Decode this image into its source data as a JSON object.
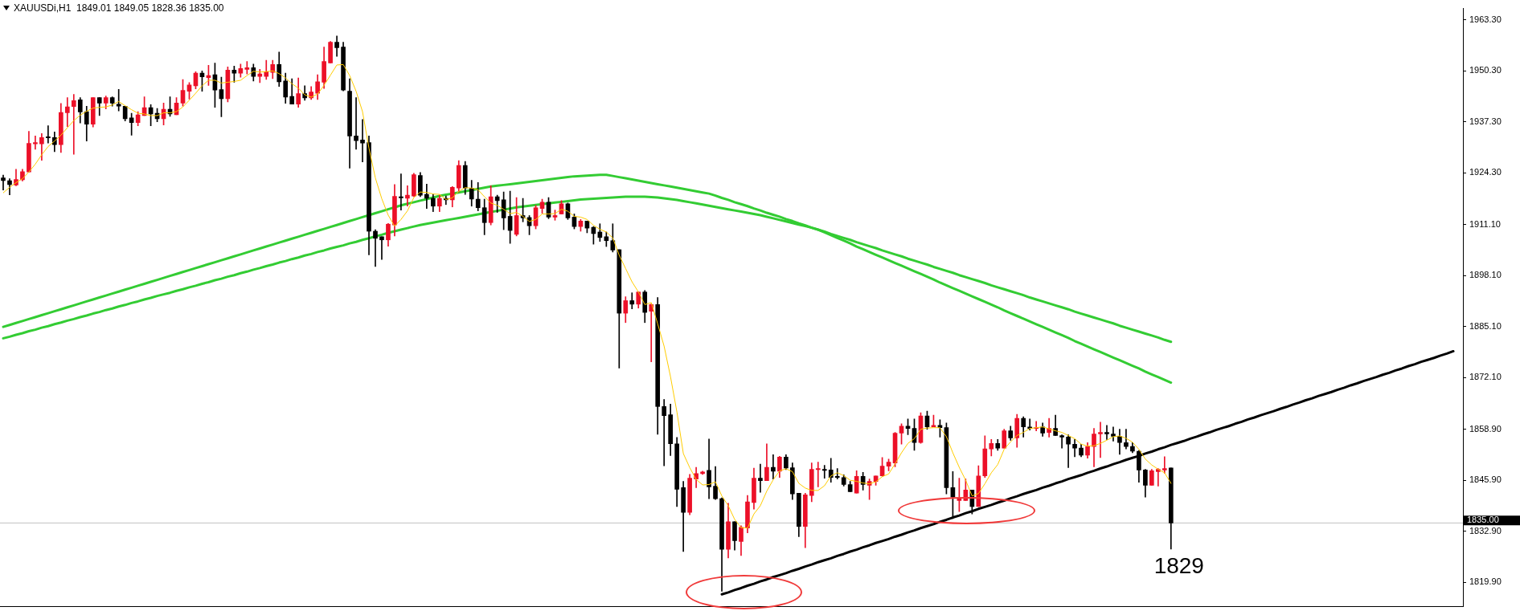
{
  "chart_data": {
    "type": "candlestick",
    "title": "XAUUSDi,H1  1849.01 1849.05 1828.36 1835.00",
    "categories": [
      null,
      null,
      null,
      null,
      null,
      null,
      null,
      null,
      null,
      null,
      null,
      null,
      null,
      null,
      null,
      null,
      null,
      null,
      null,
      null,
      null,
      null,
      null,
      null,
      null,
      null,
      null,
      null,
      null,
      null,
      null,
      null,
      null,
      null,
      null,
      null,
      null,
      null,
      null,
      null,
      null,
      null,
      null,
      null,
      null,
      null,
      null,
      null,
      null,
      null,
      null,
      null,
      null,
      null,
      null,
      null,
      null,
      null,
      null,
      null,
      null,
      null,
      null,
      null,
      null,
      null,
      null,
      null,
      null,
      null,
      null,
      null,
      null,
      null,
      null,
      null,
      null,
      null,
      null,
      null,
      null,
      null,
      null,
      null,
      null,
      null,
      null,
      null,
      null,
      null,
      null,
      null,
      null,
      null,
      null,
      null,
      null,
      null,
      null,
      null,
      null,
      null,
      null,
      null,
      null,
      null,
      null,
      null,
      null,
      null,
      null,
      null,
      null,
      null,
      null,
      null,
      null,
      null,
      null,
      null,
      null,
      null,
      null,
      null,
      null,
      null,
      null,
      null,
      null,
      null,
      null,
      null,
      null,
      null,
      null,
      null,
      null,
      null,
      null,
      null,
      null,
      null,
      null,
      null,
      null,
      null,
      null,
      null,
      null,
      null,
      null,
      null,
      null,
      null,
      null,
      null,
      null,
      null,
      null,
      null,
      null,
      null,
      null,
      null,
      null,
      null,
      null,
      null,
      null,
      null,
      null,
      null,
      null,
      null,
      null,
      null,
      null,
      null,
      null,
      null,
      null,
      null,
      null,
      null,
      null,
      null,
      null,
      null,
      null,
      null,
      null,
      null,
      null,
      null,
      null,
      null,
      null,
      null,
      null,
      null,
      null,
      null,
      null,
      null,
      null,
      null,
      null,
      null,
      null,
      null,
      null,
      null,
      null,
      null,
      null,
      null,
      null,
      null,
      null,
      null,
      null,
      null,
      null,
      null,
      null,
      null,
      null,
      null
    ],
    "ohlc": [
      [
        1923.0,
        1923.7,
        1919.9,
        1922.3
      ],
      [
        1922.3,
        1922.8,
        1918.7,
        1921.3
      ],
      [
        1921.2,
        1925.2,
        1921.0,
        1922.6
      ],
      [
        1922.5,
        1925.2,
        1922.2,
        1924.6
      ],
      [
        1924.5,
        1934.9,
        1924.5,
        1931.8
      ],
      [
        1931.7,
        1933.7,
        1930.3,
        1932.0
      ],
      [
        1931.7,
        1934.3,
        1927.5,
        1933.3
      ],
      [
        1933.5,
        1936.3,
        1931.9,
        1933.2
      ],
      [
        1933.3,
        1934.7,
        1929.7,
        1931.5
      ],
      [
        1931.5,
        1942.0,
        1929.5,
        1939.7
      ],
      [
        1939.6,
        1943.5,
        1936.1,
        1941.1
      ],
      [
        1941.2,
        1944.3,
        1929.0,
        1942.7
      ],
      [
        1942.9,
        1943.5,
        1937.0,
        1939.8
      ],
      [
        1939.9,
        1941.3,
        1932.4,
        1936.7
      ],
      [
        1936.7,
        1943.5,
        1936.0,
        1943.5
      ],
      [
        1943.5,
        1943.5,
        1938.9,
        1942.1
      ],
      [
        1942.1,
        1943.9,
        1940.6,
        1943.5
      ],
      [
        1943.5,
        1943.7,
        1941.3,
        1942.1
      ],
      [
        1941.8,
        1945.6,
        1940.1,
        1941.3
      ],
      [
        1941.3,
        1941.3,
        1937.5,
        1938.1
      ],
      [
        1938.3,
        1939.5,
        1933.9,
        1937.1
      ],
      [
        1937.1,
        1939.9,
        1936.3,
        1939.1
      ],
      [
        1938.9,
        1943.7,
        1938.9,
        1940.9
      ],
      [
        1940.9,
        1941.7,
        1936.3,
        1939.3
      ],
      [
        1939.5,
        1940.7,
        1937.3,
        1938.1
      ],
      [
        1938.1,
        1942.1,
        1936.5,
        1940.5
      ],
      [
        1940.5,
        1943.7,
        1938.7,
        1939.3
      ],
      [
        1939.1,
        1943.5,
        1939.1,
        1942.1
      ],
      [
        1942.1,
        1948.1,
        1941.3,
        1945.3
      ],
      [
        1945.1,
        1947.3,
        1943.1,
        1946.7
      ],
      [
        1946.5,
        1950.1,
        1945.7,
        1949.7
      ],
      [
        1949.7,
        1950.3,
        1945.1,
        1948.8
      ],
      [
        1948.6,
        1951.7,
        1946.6,
        1949.1
      ],
      [
        1949.3,
        1952.3,
        1941.0,
        1945.4
      ],
      [
        1945.5,
        1948.7,
        1938.6,
        1943.2
      ],
      [
        1943.2,
        1951.3,
        1942.4,
        1950.5
      ],
      [
        1950.5,
        1951.5,
        1947.4,
        1949.7
      ],
      [
        1949.7,
        1952.0,
        1948.7,
        1950.9
      ],
      [
        1950.7,
        1952.7,
        1949.5,
        1951.1
      ],
      [
        1951.1,
        1952.0,
        1947.7,
        1948.9
      ],
      [
        1948.9,
        1950.7,
        1947.3,
        1949.5
      ],
      [
        1948.9,
        1953.0,
        1948.1,
        1950.1
      ],
      [
        1949.9,
        1953.0,
        1948.3,
        1951.9
      ],
      [
        1951.9,
        1955.1,
        1946.3,
        1947.5
      ],
      [
        1947.7,
        1949.7,
        1942.0,
        1943.6
      ],
      [
        1943.8,
        1948.3,
        1941.8,
        1941.8
      ],
      [
        1941.8,
        1948.5,
        1941.0,
        1944.5
      ],
      [
        1944.5,
        1946.5,
        1942.8,
        1943.4
      ],
      [
        1943.4,
        1946.3,
        1943.0,
        1944.9
      ],
      [
        1944.6,
        1949.3,
        1943.0,
        1947.5
      ],
      [
        1947.4,
        1956.4,
        1945.8,
        1952.7
      ],
      [
        1952.3,
        1957.8,
        1952.3,
        1957.6
      ],
      [
        1957.6,
        1959.2,
        1954.0,
        1956.2
      ],
      [
        1956.4,
        1957.6,
        1945.2,
        1945.4
      ],
      [
        1945.1,
        1948.3,
        1925.5,
        1933.7
      ],
      [
        1933.7,
        1943.5,
        1930.3,
        1932.5
      ],
      [
        1932.7,
        1937.9,
        1927.1,
        1931.9
      ],
      [
        1932.0,
        1933.7,
        1903.4,
        1909.4
      ],
      [
        1909.4,
        1909.8,
        1900.4,
        1907.6
      ],
      [
        1908.0,
        1908.0,
        1902.2,
        1907.2
      ],
      [
        1907.2,
        1911.4,
        1905.6,
        1911.2
      ],
      [
        1911.0,
        1921.3,
        1908.2,
        1918.3
      ],
      [
        1918.2,
        1924.0,
        1914.8,
        1917.9
      ],
      [
        1917.8,
        1921.0,
        1915.8,
        1918.6
      ],
      [
        1918.4,
        1924.2,
        1918.2,
        1923.8
      ],
      [
        1923.6,
        1924.4,
        1918.2,
        1918.6
      ],
      [
        1918.8,
        1921.4,
        1915.2,
        1917.8
      ],
      [
        1917.8,
        1918.8,
        1914.4,
        1915.8
      ],
      [
        1915.8,
        1918.6,
        1914.4,
        1917.8
      ],
      [
        1917.8,
        1918.4,
        1916.2,
        1917.4
      ],
      [
        1917.4,
        1920.8,
        1915.6,
        1920.6
      ],
      [
        1920.4,
        1927.4,
        1919.4,
        1926.2
      ],
      [
        1926.2,
        1927.2,
        1918.8,
        1920.4
      ],
      [
        1920.4,
        1922.4,
        1915.8,
        1917.6
      ],
      [
        1917.6,
        1921.8,
        1914.6,
        1915.4
      ],
      [
        1915.4,
        1917.6,
        1908.5,
        1911.6
      ],
      [
        1911.6,
        1921.0,
        1911.0,
        1918.2
      ],
      [
        1918.2,
        1918.6,
        1914.2,
        1917.2
      ],
      [
        1917.4,
        1919.4,
        1909.8,
        1912.8
      ],
      [
        1913.2,
        1919.6,
        1906.3,
        1909.6
      ],
      [
        1908.6,
        1918.0,
        1908.2,
        1913.4
      ],
      [
        1913.4,
        1917.8,
        1911.8,
        1912.8
      ],
      [
        1912.9,
        1913.4,
        1908.5,
        1910.8
      ],
      [
        1910.8,
        1916.0,
        1910.0,
        1915.4
      ],
      [
        1915.2,
        1917.6,
        1914.0,
        1916.8
      ],
      [
        1916.8,
        1918.0,
        1912.6,
        1913.0
      ],
      [
        1913.0,
        1914.8,
        1912.2,
        1913.4
      ],
      [
        1913.8,
        1917.2,
        1913.8,
        1916.4
      ],
      [
        1916.4,
        1916.6,
        1912.4,
        1912.8
      ],
      [
        1913.0,
        1913.8,
        1910.0,
        1910.6
      ],
      [
        1910.6,
        1912.4,
        1909.4,
        1912.0
      ],
      [
        1912.0,
        1912.0,
        1909.0,
        1910.2
      ],
      [
        1910.4,
        1910.6,
        1906.1,
        1908.8
      ],
      [
        1909.2,
        1911.3,
        1906.8,
        1907.8
      ],
      [
        1908.0,
        1909.2,
        1905.5,
        1907.0
      ],
      [
        1907.0,
        1911.3,
        1904.1,
        1904.6
      ],
      [
        1904.7,
        1904.7,
        1874.5,
        1888.5
      ],
      [
        1888.5,
        1892.7,
        1886.1,
        1891.7
      ],
      [
        1891.7,
        1893.7,
        1889.6,
        1890.8
      ],
      [
        1890.8,
        1893.9,
        1889.8,
        1893.9
      ],
      [
        1893.9,
        1894.3,
        1886.1,
        1888.7
      ],
      [
        1889.0,
        1890.9,
        1876.1,
        1890.7
      ],
      [
        1890.7,
        1892.5,
        1857.6,
        1864.7
      ],
      [
        1864.7,
        1866.5,
        1849.6,
        1862.4
      ],
      [
        1862.6,
        1865.3,
        1852.2,
        1855.2
      ],
      [
        1855.2,
        1856.8,
        1839.2,
        1843.6
      ],
      [
        1844.0,
        1845.6,
        1827.7,
        1837.7
      ],
      [
        1837.7,
        1847.4,
        1837.1,
        1846.4
      ],
      [
        1846.2,
        1849.2,
        1844.0,
        1847.6
      ],
      [
        1847.6,
        1848.2,
        1847.4,
        1848.0
      ],
      [
        1848.4,
        1856.4,
        1841.2,
        1844.2
      ],
      [
        1844.4,
        1849.4,
        1841.0,
        1841.2
      ],
      [
        1841.2,
        1841.4,
        1817.6,
        1828.3
      ],
      [
        1828.3,
        1840.0,
        1826.1,
        1835.3
      ],
      [
        1835.3,
        1835.3,
        1828.1,
        1830.5
      ],
      [
        1830.3,
        1834.3,
        1826.7,
        1833.9
      ],
      [
        1833.7,
        1842.0,
        1832.5,
        1840.4
      ],
      [
        1840.2,
        1849.0,
        1838.5,
        1846.4
      ],
      [
        1846.4,
        1850.0,
        1842.8,
        1845.8
      ],
      [
        1845.8,
        1855.2,
        1845.8,
        1849.2
      ],
      [
        1849.2,
        1852.4,
        1846.2,
        1848.2
      ],
      [
        1848.2,
        1852.0,
        1846.6,
        1851.8
      ],
      [
        1851.8,
        1852.4,
        1848.6,
        1849.0
      ],
      [
        1849.1,
        1850.3,
        1841.0,
        1842.4
      ],
      [
        1842.6,
        1842.6,
        1831.5,
        1834.1
      ],
      [
        1834.1,
        1842.6,
        1828.7,
        1842.2
      ],
      [
        1842.0,
        1850.3,
        1840.4,
        1848.7
      ],
      [
        1848.6,
        1850.5,
        1844.2,
        1848.9
      ],
      [
        1848.7,
        1849.7,
        1846.4,
        1848.4
      ],
      [
        1848.5,
        1851.5,
        1845.4,
        1846.6
      ],
      [
        1846.9,
        1848.9,
        1846.2,
        1846.6
      ],
      [
        1846.6,
        1847.3,
        1844.4,
        1844.8
      ],
      [
        1844.8,
        1845.6,
        1843.0,
        1843.0
      ],
      [
        1842.6,
        1848.3,
        1842.6,
        1846.9
      ],
      [
        1846.9,
        1847.9,
        1843.4,
        1844.8
      ],
      [
        1844.6,
        1846.2,
        1841.0,
        1845.6
      ],
      [
        1845.6,
        1847.0,
        1844.6,
        1847.0
      ],
      [
        1847.0,
        1851.7,
        1846.9,
        1849.5
      ],
      [
        1849.5,
        1851.3,
        1848.3,
        1850.5
      ],
      [
        1850.3,
        1858.1,
        1849.3,
        1857.9
      ],
      [
        1857.9,
        1860.3,
        1855.1,
        1859.7
      ],
      [
        1859.7,
        1861.5,
        1857.5,
        1859.1
      ],
      [
        1859.1,
        1861.5,
        1853.5,
        1855.5
      ],
      [
        1855.5,
        1863.1,
        1855.3,
        1862.3
      ],
      [
        1862.3,
        1863.5,
        1858.9,
        1859.5
      ],
      [
        1859.5,
        1862.5,
        1859.5,
        1859.9
      ],
      [
        1859.9,
        1861.3,
        1856.9,
        1859.3
      ],
      [
        1859.3,
        1860.5,
        1842.4,
        1844.0
      ],
      [
        1844.0,
        1848.1,
        1836.1,
        1841.6
      ],
      [
        1840.7,
        1846.4,
        1837.9,
        1841.4
      ],
      [
        1840.7,
        1846.2,
        1840.7,
        1843.4
      ],
      [
        1843.4,
        1843.4,
        1837.3,
        1839.2
      ],
      [
        1839.2,
        1849.6,
        1839.2,
        1847.0
      ],
      [
        1847.0,
        1857.2,
        1846.6,
        1853.9
      ],
      [
        1853.9,
        1856.3,
        1852.1,
        1855.3
      ],
      [
        1855.3,
        1856.3,
        1853.5,
        1854.1
      ],
      [
        1854.1,
        1858.9,
        1854.1,
        1858.5
      ],
      [
        1858.5,
        1859.7,
        1856.1,
        1856.7
      ],
      [
        1856.7,
        1862.7,
        1854.3,
        1861.7
      ],
      [
        1861.7,
        1862.1,
        1856.9,
        1859.5
      ],
      [
        1859.5,
        1861.5,
        1858.7,
        1859.1
      ],
      [
        1859.1,
        1860.9,
        1858.5,
        1859.3
      ],
      [
        1859.5,
        1860.5,
        1857.1,
        1857.9
      ],
      [
        1858.1,
        1861.7,
        1856.9,
        1859.1
      ],
      [
        1859.1,
        1862.5,
        1857.3,
        1857.3
      ],
      [
        1857.3,
        1857.5,
        1854.1,
        1856.9
      ],
      [
        1856.9,
        1857.5,
        1849.1,
        1855.1
      ],
      [
        1855.1,
        1856.3,
        1851.9,
        1854.1
      ],
      [
        1854.1,
        1855.1,
        1851.9,
        1852.3
      ],
      [
        1852.3,
        1855.5,
        1851.5,
        1854.5
      ],
      [
        1854.5,
        1859.1,
        1849.3,
        1857.7
      ],
      [
        1857.7,
        1860.7,
        1851.7,
        1858.1
      ],
      [
        1858.1,
        1859.9,
        1856.3,
        1857.7
      ],
      [
        1857.7,
        1859.5,
        1855.9,
        1857.1
      ],
      [
        1857.1,
        1858.9,
        1852.5,
        1855.5
      ],
      [
        1855.5,
        1858.9,
        1853.9,
        1854.5
      ],
      [
        1854.5,
        1855.5,
        1852.9,
        1853.3
      ],
      [
        1853.3,
        1853.5,
        1845.4,
        1848.5
      ],
      [
        1848.5,
        1848.7,
        1841.6,
        1844.6
      ],
      [
        1844.6,
        1848.7,
        1844.6,
        1848.3
      ],
      [
        1848.1,
        1848.9,
        1844.4,
        1848.7
      ],
      [
        1848.5,
        1851.9,
        1847.7,
        1848.9
      ],
      [
        1849.01,
        1849.05,
        1828.36,
        1835.0
      ],
      null,
      null,
      null,
      null,
      null,
      null,
      null,
      null,
      null,
      null,
      null,
      null,
      null,
      null,
      null,
      null,
      null,
      null,
      null,
      null,
      null,
      null,
      null,
      null,
      null,
      null,
      null,
      null,
      null,
      null,
      null,
      null,
      null,
      null,
      null,
      null,
      null,
      null,
      null,
      null,
      null,
      null,
      null,
      null,
      null
    ],
    "colors": [
      "#000000",
      "#000000",
      "#ec1028",
      "#ec1028",
      "#ec1028",
      "#ec1028",
      "#ec1028",
      "#000000",
      "#000000",
      "#ec1028",
      "#ec1028",
      "#ec1028",
      "#000000",
      "#000000",
      "#ec1028",
      "#000000",
      "#ec1028",
      "#000000",
      "#000000",
      "#000000",
      "#000000",
      "#ec1028",
      "#ec1028",
      "#000000",
      "#000000",
      "#ec1028",
      "#000000",
      "#ec1028",
      "#ec1028",
      "#ec1028",
      "#ec1028",
      "#000000",
      "#ec1028",
      "#000000",
      "#000000",
      "#ec1028",
      "#000000",
      "#ec1028",
      "#ec1028",
      "#000000",
      "#ec1028",
      "#ec1028",
      "#ec1028",
      "#000000",
      "#000000",
      "#000000",
      "#ec1028",
      "#000000",
      "#ec1028",
      "#ec1028",
      "#ec1028",
      "#ec1028",
      "#000000",
      "#000000",
      "#000000",
      "#000000",
      "#000000",
      "#000000",
      "#000000",
      "#000000",
      "#ec1028",
      "#ec1028",
      "#000000",
      "#ec1028",
      "#ec1028",
      "#000000",
      "#000000",
      "#000000",
      "#ec1028",
      "#000000",
      "#ec1028",
      "#ec1028",
      "#000000",
      "#000000",
      "#000000",
      "#000000",
      "#ec1028",
      "#000000",
      "#000000",
      "#000000",
      "#ec1028",
      "#000000",
      "#000000",
      "#ec1028",
      "#ec1028",
      "#000000",
      "#ec1028",
      "#ec1028",
      "#000000",
      "#000000",
      "#ec1028",
      "#000000",
      "#000000",
      "#000000",
      "#000000",
      "#000000",
      "#000000",
      "#ec1028",
      "#000000",
      "#ec1028",
      "#000000",
      "#ec1028",
      "#000000",
      "#000000",
      "#000000",
      "#000000",
      "#000000",
      "#ec1028",
      "#ec1028",
      "#ec1028",
      "#000000",
      "#000000",
      "#000000",
      "#ec1028",
      "#000000",
      "#ec1028",
      "#ec1028",
      "#ec1028",
      "#000000",
      "#ec1028",
      "#000000",
      "#ec1028",
      "#000000",
      "#000000",
      "#000000",
      "#ec1028",
      "#ec1028",
      "#ec1028",
      "#000000",
      "#000000",
      "#000000",
      "#000000",
      "#000000",
      "#ec1028",
      "#000000",
      "#ec1028",
      "#ec1028",
      "#ec1028",
      "#ec1028",
      "#ec1028",
      "#ec1028",
      "#000000",
      "#000000",
      "#ec1028",
      "#000000",
      "#ec1028",
      "#000000",
      "#000000",
      "#000000",
      "#ec1028",
      "#ec1028",
      "#000000",
      "#ec1028",
      "#ec1028",
      "#ec1028",
      "#000000",
      "#ec1028",
      "#000000",
      "#ec1028",
      "#000000",
      "#000000",
      "#ec1028",
      "#000000",
      "#ec1028",
      "#000000",
      "#000000",
      "#000000",
      "#000000",
      "#000000",
      "#ec1028",
      "#ec1028",
      "#ec1028",
      "#000000",
      "#000000",
      "#000000",
      "#000000",
      "#000000",
      "#000000",
      "#000000",
      "#ec1028",
      "#ec1028",
      "#ec1028",
      "#000000",
      null,
      null,
      null,
      null,
      null,
      null,
      null,
      null,
      null,
      null,
      null,
      null,
      null,
      null,
      null,
      null,
      null,
      null,
      null,
      null,
      null,
      null,
      null,
      null,
      null,
      null,
      null,
      null,
      null,
      null,
      null,
      null,
      null,
      null,
      null,
      null,
      null,
      null,
      null,
      null,
      null,
      null,
      null,
      null,
      null
    ],
    "series": [
      {
        "type": "line",
        "color": "#33cc33",
        "values": [
          1885.0,
          1885.5,
          1886.0,
          1886.5,
          1887.0,
          1887.5,
          1888.0,
          1888.5,
          1889.0,
          1889.5,
          1890.0,
          1890.5,
          1891.0,
          1891.5,
          1892.0,
          1892.5,
          1893.0,
          1893.5,
          1894.0,
          1894.5,
          1895.0,
          1895.5,
          1896.0,
          1896.5,
          1897.0,
          1897.5,
          1898.0,
          1898.5,
          1899.0,
          1899.5,
          1900.0,
          1900.5,
          1901.0,
          1901.5,
          1902.0,
          1902.5,
          1903.0,
          1903.5,
          1904.0,
          1904.5,
          1905.0,
          1905.5,
          1906.0,
          1906.5,
          1907.0,
          1907.5,
          1908.0,
          1908.5,
          1909.0,
          1909.5,
          1910.0,
          1910.5,
          1911.0,
          1911.5,
          1912.0,
          1912.5,
          1913.0,
          1913.5,
          1914.0,
          1914.5,
          1915.0,
          1915.5,
          1916.0,
          1916.4,
          1916.8,
          1917.2,
          1917.6,
          1918.0,
          1918.4,
          1918.7,
          1919.0,
          1919.3,
          1919.6,
          1919.9,
          1920.2,
          1920.5,
          1920.8,
          1921.0,
          1921.2,
          1921.4,
          1921.6,
          1921.8,
          1922.0,
          1922.2,
          1922.4,
          1922.6,
          1922.8,
          1923.0,
          1923.2,
          1923.4,
          1923.5,
          1923.6,
          1923.7,
          1923.8,
          1923.8,
          1923.5,
          1923.2,
          1922.9,
          1922.6,
          1922.3,
          1922.0,
          1921.7,
          1921.4,
          1921.1,
          1920.8,
          1920.5,
          1920.2,
          1919.9,
          1919.6,
          1919.3,
          1919.0,
          1918.5,
          1917.9,
          1917.4,
          1916.8,
          1916.3,
          1915.8,
          1915.2,
          1914.7,
          1914.1,
          1913.6,
          1913.1,
          1912.5,
          1912.0,
          1911.4,
          1910.9,
          1910.3,
          1909.8,
          1909.1,
          1908.4,
          1907.7,
          1907.0,
          1906.3,
          1905.5,
          1904.8,
          1904.1,
          1903.4,
          1902.7,
          1902.0,
          1901.3,
          1900.6,
          1899.9,
          1899.2,
          1898.5,
          1897.8,
          1897.1,
          1896.3,
          1895.6,
          1894.9,
          1894.2,
          1893.5,
          1892.8,
          1892.1,
          1891.4,
          1890.7,
          1890.0,
          1889.2,
          1888.5,
          1887.8,
          1887.1,
          1886.4,
          1885.7,
          1885.0,
          1884.3,
          1883.6,
          1882.9,
          1882.2,
          1881.4,
          1880.7,
          1880.0,
          1879.3,
          1878.6,
          1877.9,
          1877.2,
          1876.5,
          1875.8,
          1875.1,
          1874.4,
          1873.6,
          1872.9,
          1872.2,
          1871.5,
          1870.8,
          null,
          null,
          null,
          null,
          null,
          null,
          null,
          null,
          null,
          null,
          null,
          null,
          null,
          null,
          null,
          null,
          null,
          null,
          null,
          null,
          null,
          null,
          null,
          null,
          null,
          null,
          null,
          null,
          null,
          null,
          null,
          null,
          null,
          null,
          null,
          null,
          null,
          null,
          null,
          null,
          null,
          null,
          null,
          null,
          null
        ]
      },
      {
        "type": "line",
        "color": "#33cc33",
        "values": [
          1882.1,
          1882.5,
          1883.0,
          1883.4,
          1883.9,
          1884.3,
          1884.8,
          1885.2,
          1885.7,
          1886.1,
          1886.6,
          1887.0,
          1887.5,
          1887.9,
          1888.4,
          1888.8,
          1889.3,
          1889.7,
          1890.2,
          1890.6,
          1891.1,
          1891.5,
          1892.0,
          1892.4,
          1892.9,
          1893.3,
          1893.7,
          1894.2,
          1894.6,
          1895.1,
          1895.5,
          1896.0,
          1896.4,
          1896.9,
          1897.3,
          1897.8,
          1898.2,
          1898.7,
          1899.1,
          1899.6,
          1900.0,
          1900.5,
          1900.9,
          1901.4,
          1901.8,
          1902.3,
          1902.7,
          1903.2,
          1903.6,
          1904.1,
          1904.5,
          1905.0,
          1905.4,
          1905.8,
          1906.3,
          1906.7,
          1907.2,
          1907.6,
          1908.1,
          1908.5,
          1909.0,
          1909.4,
          1909.8,
          1910.2,
          1910.6,
          1911.0,
          1911.3,
          1911.6,
          1911.9,
          1912.2,
          1912.5,
          1912.8,
          1913.1,
          1913.4,
          1913.7,
          1914.0,
          1914.3,
          1914.6,
          1914.9,
          1915.2,
          1915.5,
          1915.7,
          1915.9,
          1916.1,
          1916.3,
          1916.5,
          1916.7,
          1916.9,
          1917.1,
          1917.3,
          1917.5,
          1917.6,
          1917.7,
          1917.8,
          1917.9,
          1918.0,
          1918.1,
          1918.2,
          1918.2,
          1918.2,
          1918.2,
          1918.1,
          1918.0,
          1917.8,
          1917.6,
          1917.4,
          1917.1,
          1916.8,
          1916.5,
          1916.2,
          1915.9,
          1915.6,
          1915.3,
          1915.0,
          1914.7,
          1914.4,
          1914.1,
          1913.8,
          1913.5,
          1913.1,
          1912.7,
          1912.3,
          1911.9,
          1911.5,
          1911.1,
          1910.7,
          1910.3,
          1909.8,
          1909.3,
          1908.7,
          1908.2,
          1907.7,
          1907.2,
          1906.6,
          1906.1,
          1905.6,
          1905.1,
          1904.5,
          1904.0,
          1903.5,
          1903.0,
          1902.4,
          1901.9,
          1901.4,
          1900.9,
          1900.3,
          1899.8,
          1899.3,
          1898.8,
          1898.2,
          1897.7,
          1897.2,
          1896.7,
          1896.2,
          1895.6,
          1895.1,
          1894.6,
          1894.1,
          1893.6,
          1893.1,
          1892.5,
          1892.0,
          1891.5,
          1891.0,
          1890.5,
          1890.0,
          1889.5,
          1888.9,
          1888.4,
          1887.9,
          1887.4,
          1886.9,
          1886.4,
          1885.9,
          1885.3,
          1884.8,
          1884.3,
          1883.8,
          1883.3,
          1882.8,
          1882.3,
          1881.7,
          1881.2,
          null,
          null,
          null,
          null,
          null,
          null,
          null,
          null,
          null,
          null,
          null,
          null,
          null,
          null,
          null,
          null,
          null,
          null,
          null,
          null,
          null,
          null,
          null,
          null,
          null,
          null,
          null,
          null,
          null,
          null,
          null,
          null,
          null,
          null,
          null,
          null,
          null,
          null,
          null,
          null,
          null,
          null,
          null,
          null,
          null
        ]
      },
      {
        "type": "line",
        "color": "#ffcc00",
        "values": [
          1919.2,
          1920.6,
          1921.8,
          1922.8,
          1924.5,
          1926.5,
          1928.9,
          1931.0,
          1932.4,
          1933.9,
          1935.8,
          1937.6,
          1939.0,
          1940.0,
          1940.8,
          1941.0,
          1941.1,
          1941.6,
          1942.5,
          1941.4,
          1940.4,
          1939.5,
          1939.3,
          1938.9,
          1938.9,
          1939.6,
          1939.6,
          1939.9,
          1941.1,
          1942.8,
          1944.6,
          1946.5,
          1947.9,
          1947.9,
          1947.2,
          1947.4,
          1947.6,
          1947.9,
          1949.1,
          1950.2,
          1950.0,
          1950.1,
          1950.3,
          1949.6,
          1948.5,
          1947.0,
          1945.9,
          1944.2,
          1943.6,
          1944.4,
          1946.6,
          1949.2,
          1951.8,
          1951.9,
          1949.1,
          1945.1,
          1939.9,
          1930.6,
          1923.0,
          1917.7,
          1913.5,
          1910.7,
          1912.4,
          1914.6,
          1918.0,
          1919.4,
          1919.3,
          1918.9,
          1918.8,
          1917.5,
          1917.9,
          1919.6,
          1920.5,
          1920.4,
          1920.0,
          1918.2,
          1916.6,
          1916.0,
          1915.0,
          1913.9,
          1914.2,
          1913.2,
          1911.9,
          1912.4,
          1913.8,
          1913.8,
          1913.9,
          1915.0,
          1914.5,
          1913.2,
          1913.0,
          1912.4,
          1910.9,
          1909.9,
          1909.2,
          1907.7,
          1903.3,
          1899.9,
          1896.5,
          1893.9,
          1890.7,
          1891.2,
          1885.8,
          1880.1,
          1872.3,
          1863.3,
          1852.7,
          1849.1,
          1846.1,
          1844.7,
          1844.8,
          1845.5,
          1841.9,
          1839.4,
          1835.9,
          1833.8,
          1833.7,
          1837.3,
          1839.4,
          1843.1,
          1846.0,
          1848.3,
          1848.8,
          1848.1,
          1845.1,
          1843.9,
          1843.3,
          1843.3,
          1844.5,
          1847.0,
          1847.8,
          1847.1,
          1845.9,
          1845.6,
          1845.2,
          1845.0,
          1845.5,
          1846.8,
          1847.5,
          1850.1,
          1852.9,
          1855.3,
          1856.5,
          1858.9,
          1859.2,
          1859.3,
          1859.3,
          1857.0,
          1852.9,
          1849.2,
          1845.9,
          1841.9,
          1842.5,
          1845.0,
          1847.8,
          1849.9,
          1853.8,
          1855.7,
          1857.3,
          1858.1,
          1859.1,
          1859.3,
          1859.5,
          1859.0,
          1858.5,
          1858.1,
          1857.3,
          1856.5,
          1855.1,
          1854.6,
          1854.7,
          1855.3,
          1856.1,
          1857.0,
          1857.2,
          1856.6,
          1855.6,
          1853.8,
          1851.3,
          1849.8,
          1848.7,
          1847.8,
          1845.1,
          null,
          null,
          null,
          null,
          null,
          null,
          null,
          null,
          null,
          null,
          null,
          null,
          null,
          null,
          null,
          null,
          null,
          null,
          null,
          null,
          null,
          null,
          null,
          null,
          null,
          null,
          null,
          null,
          null,
          null,
          null,
          null,
          null,
          null,
          null,
          null,
          null,
          null,
          null,
          null,
          null,
          null,
          null,
          null,
          null
        ]
      },
      {
        "type": "line",
        "color": "#000000",
        "values": [
          null,
          null,
          null,
          null,
          null,
          null,
          null,
          null,
          null,
          null,
          null,
          null,
          null,
          null,
          null,
          null,
          null,
          null,
          null,
          null,
          null,
          null,
          null,
          null,
          null,
          null,
          null,
          null,
          null,
          null,
          null,
          null,
          null,
          null,
          null,
          null,
          null,
          null,
          null,
          null,
          null,
          null,
          null,
          null,
          null,
          null,
          null,
          null,
          null,
          null,
          null,
          null,
          null,
          null,
          null,
          null,
          null,
          null,
          null,
          null,
          null,
          null,
          null,
          null,
          null,
          null,
          null,
          null,
          null,
          null,
          null,
          null,
          null,
          null,
          null,
          null,
          null,
          null,
          null,
          null,
          null,
          null,
          null,
          null,
          null,
          null,
          null,
          null,
          null,
          null,
          null,
          null,
          null,
          null,
          null,
          null,
          null,
          null,
          null,
          null,
          null,
          null,
          null,
          null,
          null,
          null,
          null,
          null,
          null,
          null,
          null,
          null,
          1816.8,
          1817.3,
          1817.9,
          1818.4,
          1819.0,
          1819.5,
          1820.1,
          1820.6,
          1821.2,
          1821.7,
          1822.2,
          1822.8,
          1823.3,
          1823.9,
          1824.4,
          1825.0,
          1825.5,
          1826.0,
          1826.6,
          1827.1,
          1827.7,
          1828.2,
          1828.8,
          1829.3,
          1829.9,
          1830.4,
          1830.9,
          1831.5,
          1832.0,
          1832.6,
          1833.1,
          1833.7,
          1834.2,
          1834.7,
          1835.3,
          1835.8,
          1836.4,
          1836.9,
          1837.5,
          1838.0,
          1838.6,
          1839.1,
          1839.6,
          1840.2,
          1840.7,
          1841.3,
          1841.8,
          1842.4,
          1842.9,
          1843.4,
          1844.0,
          1844.5,
          1845.1,
          1845.6,
          1846.2,
          1846.7,
          1847.2,
          1847.8,
          1848.3,
          1848.9,
          1849.4,
          1850.0,
          1850.5,
          1851.1,
          1851.6,
          1852.1,
          1852.7,
          1853.2,
          1853.8,
          1854.3,
          1854.9,
          1855.4,
          1855.9,
          1856.5,
          1857.0,
          1857.6,
          1858.1,
          1858.7,
          1859.2,
          1859.7,
          1860.3,
          1860.8,
          1861.4,
          1861.9,
          1862.5,
          1863.0,
          1863.5,
          1864.1,
          1864.6,
          1865.2,
          1865.7,
          1866.3,
          1866.8,
          1867.4,
          1867.9,
          1868.4,
          1869.0,
          1869.5,
          1870.1,
          1870.6,
          1871.2,
          1871.7,
          1872.2,
          1872.8,
          1873.3,
          1873.9,
          1874.4,
          1875.0,
          1875.5,
          1876.1,
          1876.6,
          1877.1,
          1877.7,
          1878.2,
          1878.8,
          null
        ]
      }
    ],
    "ylim": [
      1813.7,
      1966.2
    ],
    "yticks": [
      {
        "value": 1819.9,
        "label": "1819.90"
      },
      {
        "value": 1832.9,
        "label": "1832.90"
      },
      {
        "value": 1845.9,
        "label": "1845.90"
      },
      {
        "value": 1858.9,
        "label": "1858.90"
      },
      {
        "value": 1872.1,
        "label": "1872.10"
      },
      {
        "value": 1885.1,
        "label": "1885.10"
      },
      {
        "value": 1898.1,
        "label": "1898.10"
      },
      {
        "value": 1911.1,
        "label": "1911.10"
      },
      {
        "value": 1924.3,
        "label": "1924.30"
      },
      {
        "value": 1937.3,
        "label": "1937.30"
      },
      {
        "value": 1950.3,
        "label": "1950.30"
      },
      {
        "value": 1963.3,
        "label": "1963.30"
      }
    ],
    "tick_labels": "y",
    "ref_lines": [
      {
        "axis": "y",
        "value": 1835.0,
        "label": "1835.00",
        "color": "#c0c0c0"
      }
    ],
    "annotations": [
      "1829"
    ]
  }
}
